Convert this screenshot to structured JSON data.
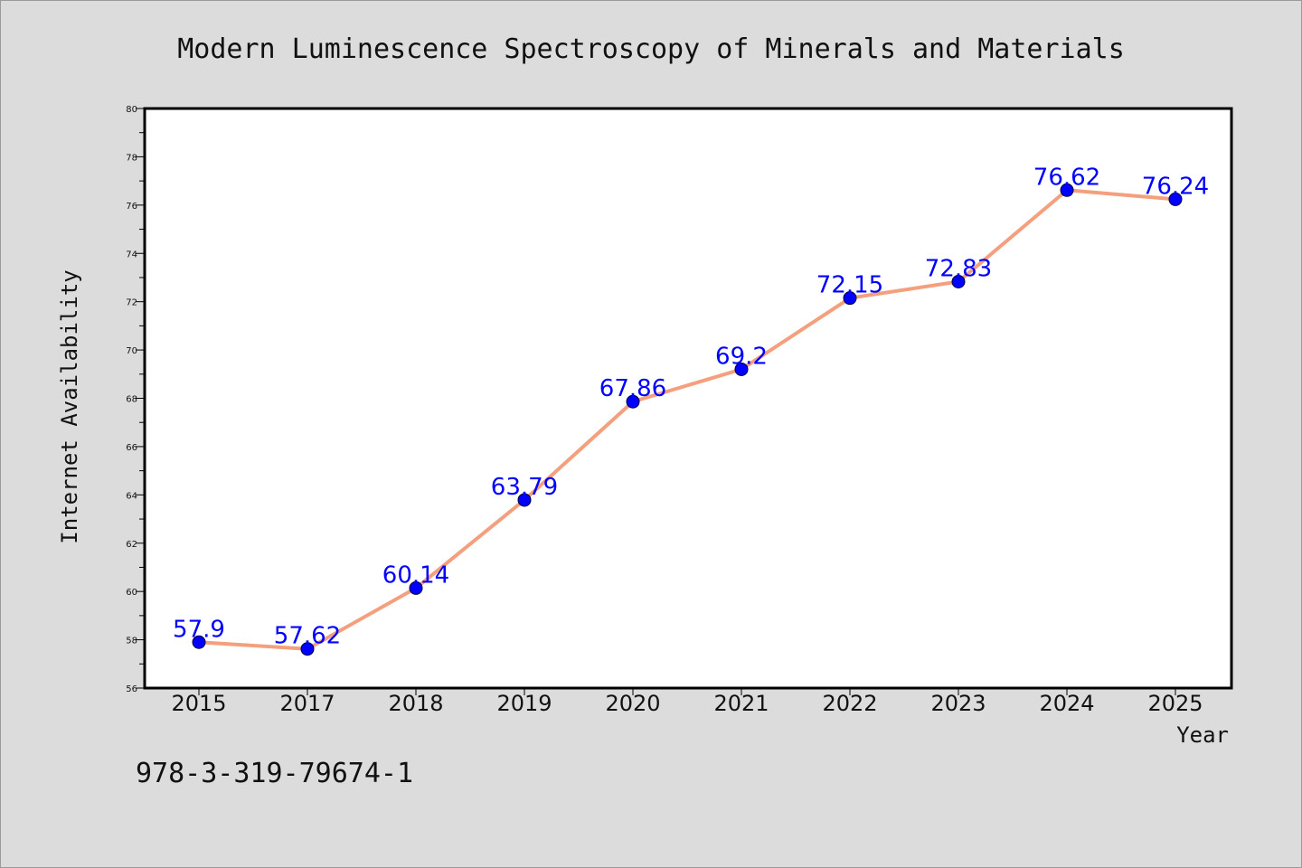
{
  "colors": {
    "background": "#dcdcdc",
    "plot_background": "#ffffff",
    "line": "#f4a07e",
    "marker": "#0000ff",
    "label": "#0000ff",
    "text": "#111111"
  },
  "footnote": "978-3-319-79674-1",
  "chart_data": {
    "type": "line",
    "title": "Modern Luminescence Spectroscopy of Minerals and Materials",
    "xlabel": "Year",
    "ylabel": "Internet Availability",
    "categories": [
      "2015",
      "2017",
      "2018",
      "2019",
      "2020",
      "2021",
      "2022",
      "2023",
      "2024",
      "2025"
    ],
    "series": [
      {
        "values": [
          57.9,
          57.62,
          60.14,
          63.79,
          67.86,
          69.2,
          72.15,
          72.83,
          76.62,
          76.24
        ],
        "labels": [
          "57.9",
          "57.62",
          "60.14",
          "63.79",
          "67.86",
          "69.2",
          "72.15",
          "72.83",
          "76.62",
          "76.24"
        ]
      }
    ],
    "ylim": [
      56,
      80
    ],
    "yticks": [
      "56",
      "58",
      "60",
      "62",
      "64",
      "66",
      "68",
      "70",
      "72",
      "74",
      "76",
      "78",
      "80"
    ],
    "grid": false,
    "legend": "none"
  }
}
